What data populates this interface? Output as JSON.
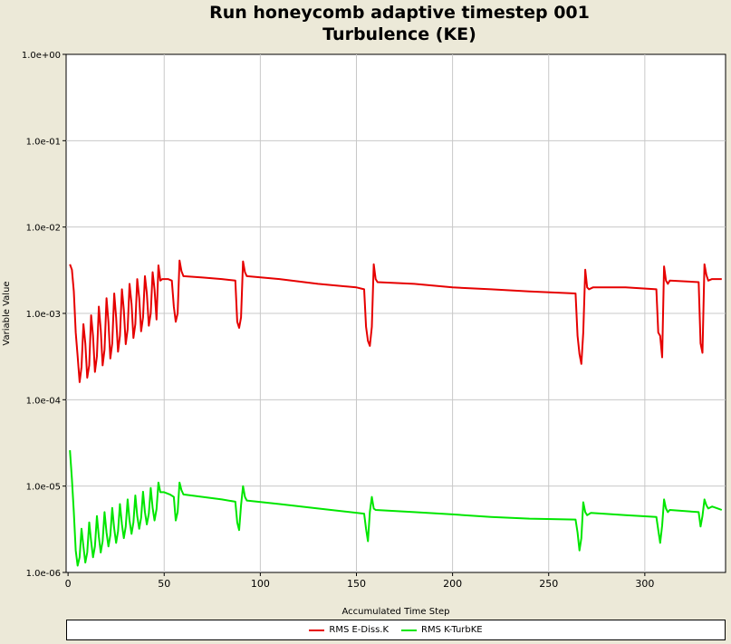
{
  "chart_data": {
    "type": "line",
    "title": "Run honeycomb adaptive timestep 001",
    "subtitle": "Turbulence (KE)",
    "xlabel": "Accumulated Time Step",
    "ylabel": "Variable Value",
    "xlim": [
      -1,
      342
    ],
    "ylim": [
      1e-06,
      1
    ],
    "yscale": "log",
    "grid": true,
    "legend_position": "bottom",
    "x_ticks": [
      "0",
      "50",
      "100",
      "150",
      "200",
      "250",
      "300"
    ],
    "y_ticks": [
      "1.0e-06",
      "1.0e-05",
      "1.0e-04",
      "1.0e-03",
      "1.0e-02",
      "1.0e-01",
      "1.0e+00"
    ],
    "series": [
      {
        "name": "RMS E-Diss.K",
        "color": "#e60000",
        "points": [
          [
            1,
            0.0037
          ],
          [
            2,
            0.0032
          ],
          [
            3,
            0.0018
          ],
          [
            4,
            0.0006
          ],
          [
            5,
            0.00032
          ],
          [
            6,
            0.00016
          ],
          [
            7,
            0.00024
          ],
          [
            8,
            0.00075
          ],
          [
            9,
            0.00045
          ],
          [
            10,
            0.00018
          ],
          [
            11,
            0.00025
          ],
          [
            12,
            0.00095
          ],
          [
            13,
            0.00055
          ],
          [
            14,
            0.00021
          ],
          [
            15,
            0.00032
          ],
          [
            16,
            0.0012
          ],
          [
            17,
            0.00065
          ],
          [
            18,
            0.00025
          ],
          [
            19,
            0.00038
          ],
          [
            20,
            0.0015
          ],
          [
            21,
            0.0008
          ],
          [
            22,
            0.0003
          ],
          [
            23,
            0.00045
          ],
          [
            24,
            0.0017
          ],
          [
            25,
            0.0009
          ],
          [
            26,
            0.00036
          ],
          [
            27,
            0.00055
          ],
          [
            28,
            0.0019
          ],
          [
            29,
            0.0011
          ],
          [
            30,
            0.00044
          ],
          [
            31,
            0.00065
          ],
          [
            32,
            0.0022
          ],
          [
            33,
            0.0013
          ],
          [
            34,
            0.00052
          ],
          [
            35,
            0.00075
          ],
          [
            36,
            0.0025
          ],
          [
            37,
            0.0015
          ],
          [
            38,
            0.00062
          ],
          [
            39,
            0.0009
          ],
          [
            40,
            0.0027
          ],
          [
            41,
            0.0017
          ],
          [
            42,
            0.00072
          ],
          [
            43,
            0.001
          ],
          [
            44,
            0.003
          ],
          [
            45,
            0.0019
          ],
          [
            46,
            0.00085
          ],
          [
            47,
            0.0036
          ],
          [
            48,
            0.0024
          ],
          [
            49,
            0.0025
          ],
          [
            52,
            0.0025
          ],
          [
            54,
            0.0024
          ],
          [
            55,
            0.0012
          ],
          [
            56,
            0.0008
          ],
          [
            57,
            0.001
          ],
          [
            58,
            0.0041
          ],
          [
            59,
            0.0031
          ],
          [
            60,
            0.0027
          ],
          [
            70,
            0.0026
          ],
          [
            80,
            0.0025
          ],
          [
            87,
            0.0024
          ],
          [
            88,
            0.0008
          ],
          [
            89,
            0.00068
          ],
          [
            90,
            0.0009
          ],
          [
            91,
            0.004
          ],
          [
            92,
            0.003
          ],
          [
            93,
            0.0027
          ],
          [
            110,
            0.0025
          ],
          [
            130,
            0.0022
          ],
          [
            150,
            0.002
          ],
          [
            154,
            0.0019
          ],
          [
            155,
            0.0007
          ],
          [
            156,
            0.00048
          ],
          [
            157,
            0.00042
          ],
          [
            158,
            0.0007
          ],
          [
            159,
            0.0037
          ],
          [
            160,
            0.0025
          ],
          [
            161,
            0.0023
          ],
          [
            180,
            0.0022
          ],
          [
            200,
            0.002
          ],
          [
            220,
            0.0019
          ],
          [
            240,
            0.0018
          ],
          [
            264,
            0.0017
          ],
          [
            265,
            0.00055
          ],
          [
            266,
            0.00034
          ],
          [
            267,
            0.00026
          ],
          [
            268,
            0.0006
          ],
          [
            269,
            0.0032
          ],
          [
            270,
            0.002
          ],
          [
            271,
            0.0019
          ],
          [
            273,
            0.002
          ],
          [
            290,
            0.002
          ],
          [
            306,
            0.0019
          ],
          [
            307,
            0.0006
          ],
          [
            308,
            0.00055
          ],
          [
            309,
            0.00031
          ],
          [
            310,
            0.0035
          ],
          [
            311,
            0.0024
          ],
          [
            312,
            0.0022
          ],
          [
            313,
            0.0024
          ],
          [
            328,
            0.0023
          ],
          [
            329,
            0.00045
          ],
          [
            330,
            0.00035
          ],
          [
            331,
            0.0037
          ],
          [
            332,
            0.0028
          ],
          [
            333,
            0.0024
          ],
          [
            335,
            0.0025
          ],
          [
            340,
            0.0025
          ]
        ]
      },
      {
        "name": "RMS K-TurbKE",
        "color": "#00e600",
        "points": [
          [
            1,
            2.6e-05
          ],
          [
            2,
            1.2e-05
          ],
          [
            3,
            5e-06
          ],
          [
            4,
            1.8e-06
          ],
          [
            5,
            1.2e-06
          ],
          [
            6,
            1.5e-06
          ],
          [
            7,
            3.2e-06
          ],
          [
            8,
            2e-06
          ],
          [
            9,
            1.3e-06
          ],
          [
            10,
            1.7e-06
          ],
          [
            11,
            3.8e-06
          ],
          [
            12,
            2.3e-06
          ],
          [
            13,
            1.5e-06
          ],
          [
            14,
            2e-06
          ],
          [
            15,
            4.5e-06
          ],
          [
            16,
            2.6e-06
          ],
          [
            17,
            1.7e-06
          ],
          [
            18,
            2.3e-06
          ],
          [
            19,
            5e-06
          ],
          [
            20,
            2.9e-06
          ],
          [
            21,
            2e-06
          ],
          [
            22,
            2.7e-06
          ],
          [
            23,
            5.6e-06
          ],
          [
            24,
            3.2e-06
          ],
          [
            25,
            2.2e-06
          ],
          [
            26,
            3e-06
          ],
          [
            27,
            6.2e-06
          ],
          [
            28,
            3.6e-06
          ],
          [
            29,
            2.5e-06
          ],
          [
            30,
            3.4e-06
          ],
          [
            31,
            7e-06
          ],
          [
            32,
            4e-06
          ],
          [
            33,
            2.8e-06
          ],
          [
            34,
            3.8e-06
          ],
          [
            35,
            7.8e-06
          ],
          [
            36,
            4.5e-06
          ],
          [
            37,
            3.2e-06
          ],
          [
            38,
            4.3e-06
          ],
          [
            39,
            8.6e-06
          ],
          [
            40,
            5e-06
          ],
          [
            41,
            3.6e-06
          ],
          [
            42,
            4.8e-06
          ],
          [
            43,
            9.5e-06
          ],
          [
            44,
            5.6e-06
          ],
          [
            45,
            4e-06
          ],
          [
            46,
            5.4e-06
          ],
          [
            47,
            1.1e-05
          ],
          [
            48,
            8.5e-06
          ],
          [
            50,
            8.5e-06
          ],
          [
            53,
            8e-06
          ],
          [
            55,
            7.5e-06
          ],
          [
            56,
            4e-06
          ],
          [
            57,
            5e-06
          ],
          [
            58,
            1.1e-05
          ],
          [
            59,
            9e-06
          ],
          [
            60,
            8e-06
          ],
          [
            70,
            7.5e-06
          ],
          [
            80,
            7e-06
          ],
          [
            87,
            6.6e-06
          ],
          [
            88,
            3.8e-06
          ],
          [
            89,
            3.1e-06
          ],
          [
            90,
            6e-06
          ],
          [
            91,
            1e-05
          ],
          [
            92,
            7.5e-06
          ],
          [
            93,
            6.8e-06
          ],
          [
            110,
            6.2e-06
          ],
          [
            130,
            5.5e-06
          ],
          [
            154,
            4.8e-06
          ],
          [
            155,
            3.2e-06
          ],
          [
            156,
            2.3e-06
          ],
          [
            157,
            5e-06
          ],
          [
            158,
            7.5e-06
          ],
          [
            159,
            5.5e-06
          ],
          [
            160,
            5.3e-06
          ],
          [
            180,
            5e-06
          ],
          [
            200,
            4.7e-06
          ],
          [
            220,
            4.4e-06
          ],
          [
            240,
            4.2e-06
          ],
          [
            264,
            4.1e-06
          ],
          [
            265,
            2.9e-06
          ],
          [
            266,
            1.8e-06
          ],
          [
            267,
            2.5e-06
          ],
          [
            268,
            6.5e-06
          ],
          [
            269,
            5e-06
          ],
          [
            270,
            4.6e-06
          ],
          [
            272,
            4.9e-06
          ],
          [
            290,
            4.6e-06
          ],
          [
            306,
            4.4e-06
          ],
          [
            307,
            3.1e-06
          ],
          [
            308,
            2.2e-06
          ],
          [
            309,
            3.5e-06
          ],
          [
            310,
            7e-06
          ],
          [
            311,
            5.5e-06
          ],
          [
            312,
            5e-06
          ],
          [
            313,
            5.3e-06
          ],
          [
            328,
            5e-06
          ],
          [
            329,
            3.4e-06
          ],
          [
            330,
            4.5e-06
          ],
          [
            331,
            7e-06
          ],
          [
            332,
            6e-06
          ],
          [
            333,
            5.5e-06
          ],
          [
            335,
            5.8e-06
          ],
          [
            338,
            5.5e-06
          ],
          [
            340,
            5.3e-06
          ]
        ]
      }
    ]
  }
}
